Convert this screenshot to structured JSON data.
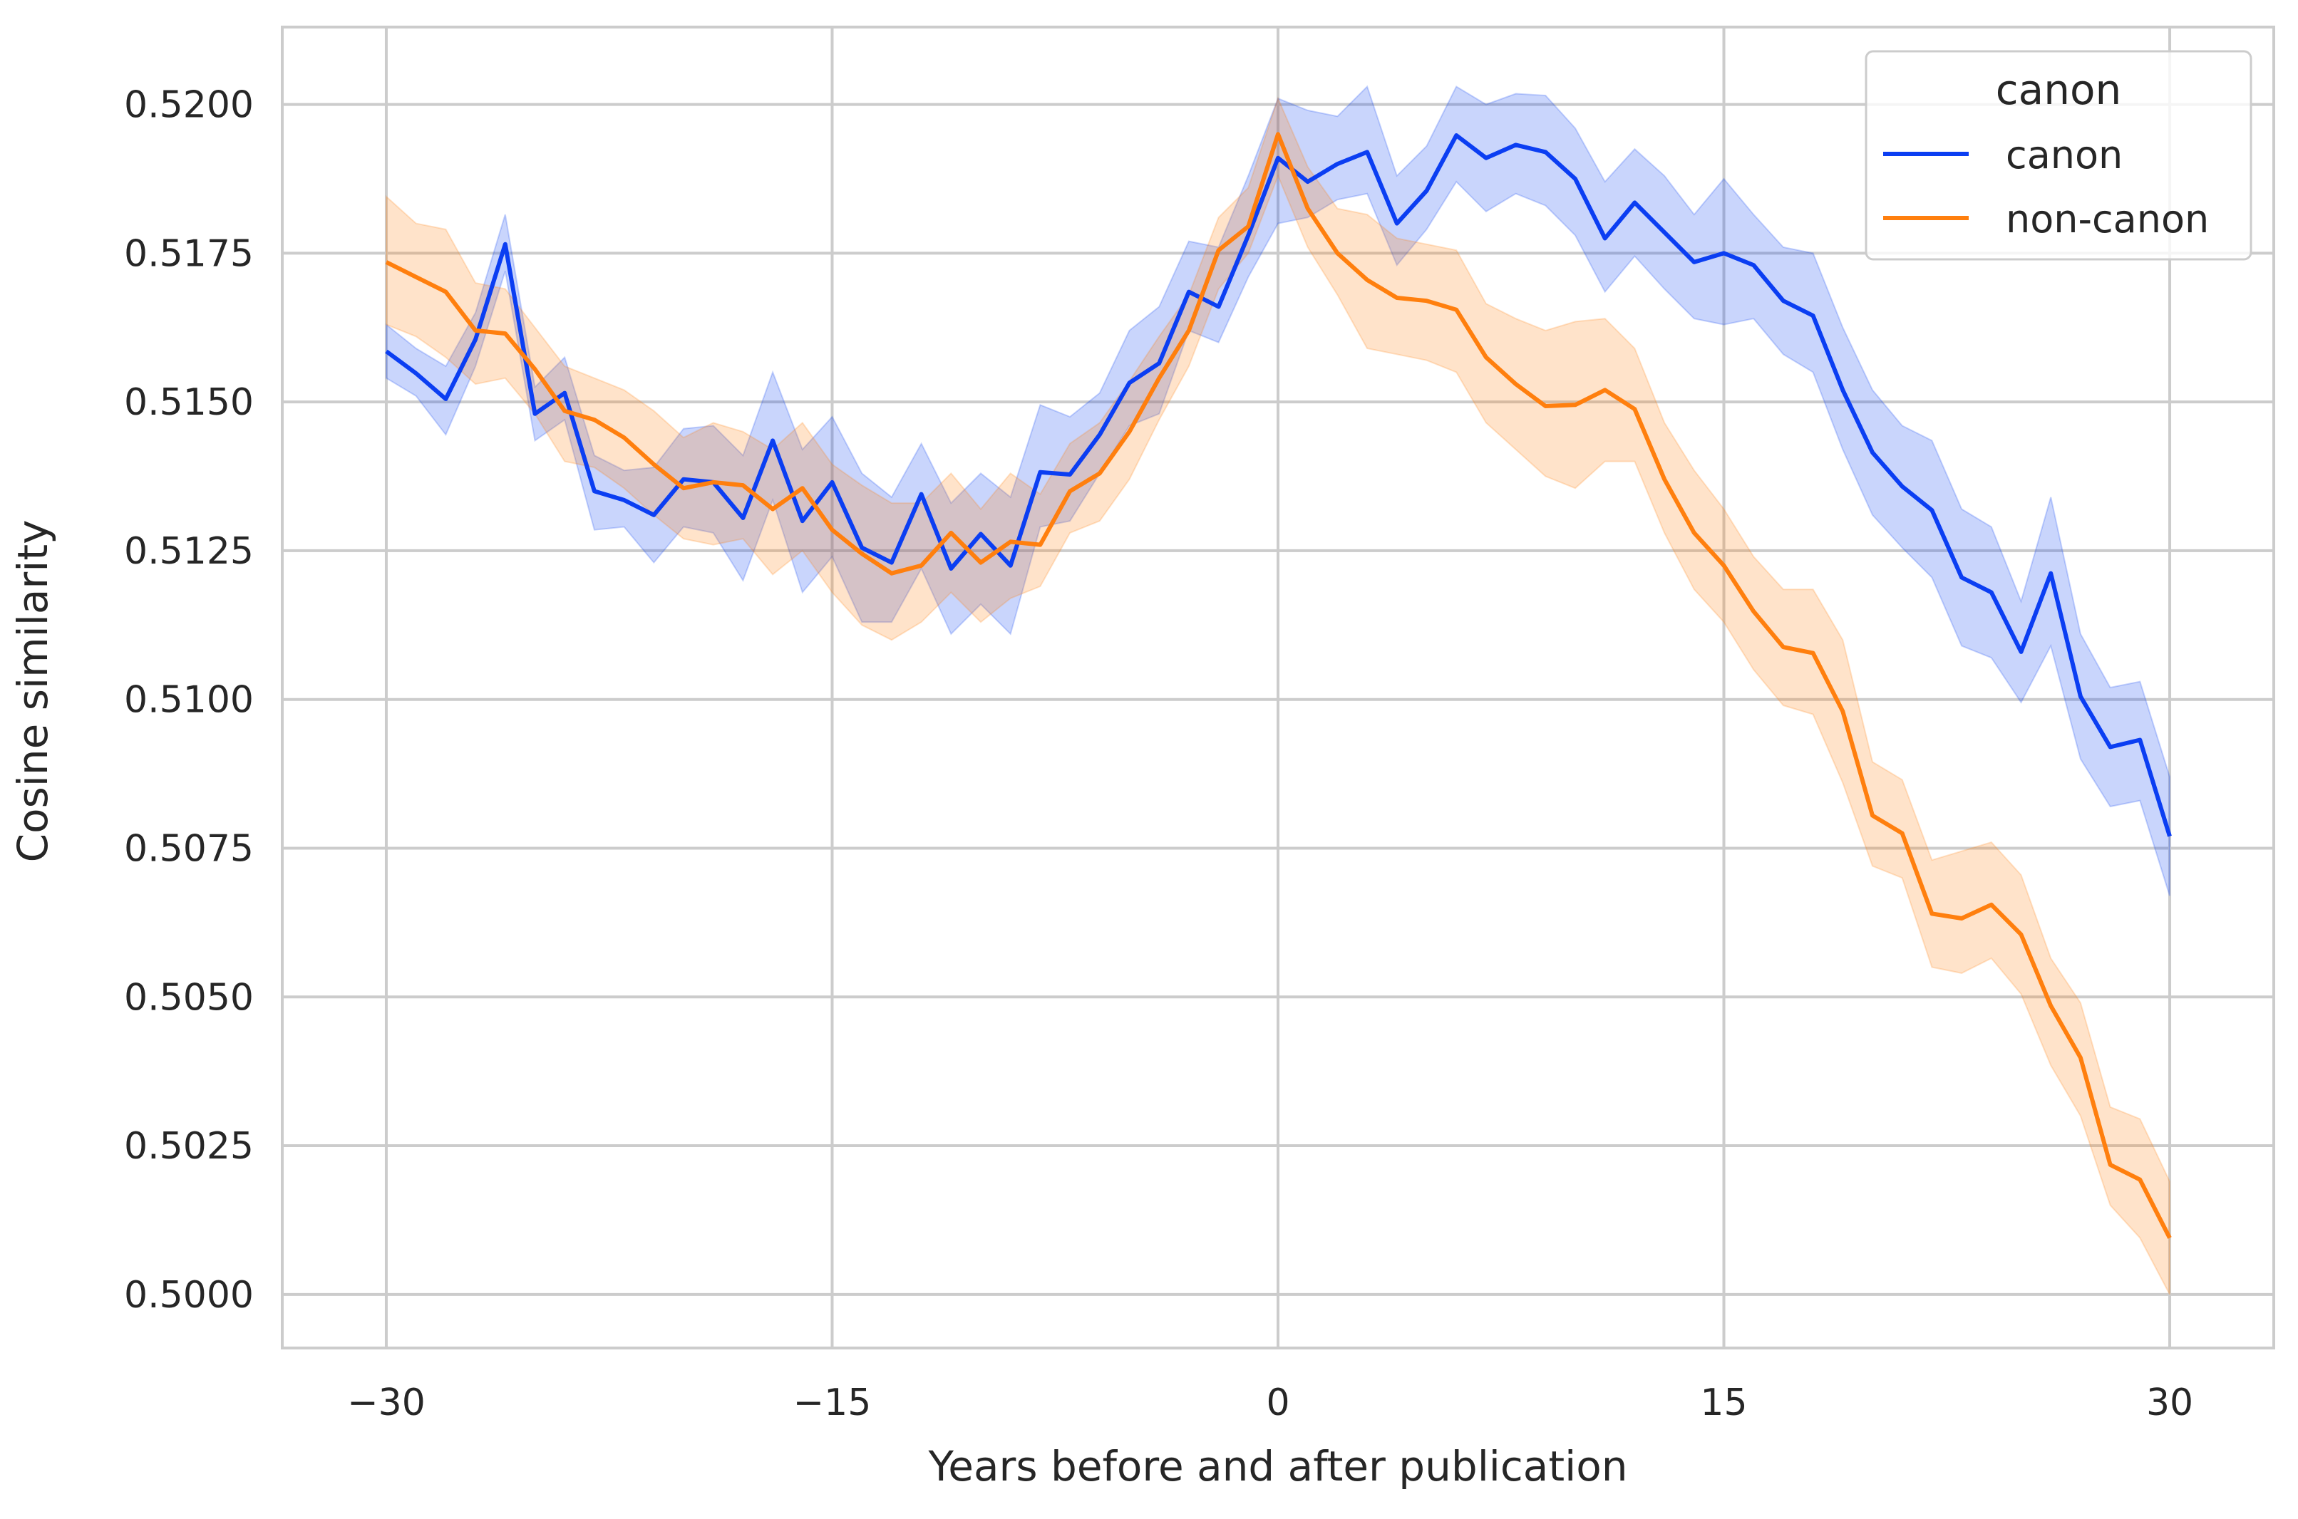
{
  "chart_data": {
    "type": "line",
    "title": "",
    "xlabel": "Years before and after publication",
    "ylabel": "Cosine similarity",
    "xlim": [
      -33.5,
      33.5
    ],
    "ylim": [
      0.4991,
      0.5213
    ],
    "xticks": [
      -30,
      -15,
      0,
      15,
      30
    ],
    "xtick_labels": [
      "−30",
      "−15",
      "0",
      "15",
      "30"
    ],
    "yticks": [
      0.5,
      0.5025,
      0.505,
      0.5075,
      0.51,
      0.5125,
      0.515,
      0.5175,
      0.52
    ],
    "ytick_labels": [
      "0.5000",
      "0.5025",
      "0.5050",
      "0.5075",
      "0.5100",
      "0.5125",
      "0.5150",
      "0.5175",
      "0.5200"
    ],
    "grid": true,
    "legend": {
      "title": "canon",
      "placement": "top-right"
    },
    "x": [
      -30,
      -29,
      -28,
      -27,
      -26,
      -25,
      -24,
      -23,
      -22,
      -21,
      -20,
      -19,
      -18,
      -17,
      -16,
      -15,
      -14,
      -13,
      -12,
      -11,
      -10,
      -9,
      -8,
      -7,
      -6,
      -5,
      -4,
      -3,
      -2,
      -1,
      0,
      1,
      2,
      3,
      4,
      5,
      6,
      7,
      8,
      9,
      10,
      11,
      12,
      13,
      14,
      15,
      16,
      17,
      18,
      19,
      20,
      21,
      22,
      23,
      24,
      25,
      26,
      27,
      28,
      29,
      30
    ],
    "series": [
      {
        "name": "canon",
        "color": "#0b3ef2",
        "values": [
          0.51585,
          0.51548,
          0.51505,
          0.51605,
          0.51765,
          0.5148,
          0.51515,
          0.5135,
          0.51335,
          0.5131,
          0.5137,
          0.51365,
          0.51305,
          0.51435,
          0.513,
          0.51365,
          0.51255,
          0.5123,
          0.51345,
          0.5122,
          0.51278,
          0.51225,
          0.51382,
          0.51378,
          0.51445,
          0.51532,
          0.51565,
          0.51685,
          0.5166,
          0.5178,
          0.5191,
          0.5187,
          0.519,
          0.5192,
          0.518,
          0.51855,
          0.51948,
          0.5191,
          0.51932,
          0.5192,
          0.51875,
          0.51775,
          0.51835,
          0.51785,
          0.51735,
          0.5175,
          0.5173,
          0.5167,
          0.51645,
          0.5152,
          0.51415,
          0.51358,
          0.51318,
          0.51205,
          0.5118,
          0.5108,
          0.51212,
          0.51005,
          0.5092,
          0.50932,
          0.5077
        ],
        "ci_low": [
          0.5154,
          0.5151,
          0.51445,
          0.5156,
          0.5172,
          0.51435,
          0.5147,
          0.51285,
          0.5129,
          0.5123,
          0.5129,
          0.5128,
          0.512,
          0.51335,
          0.5118,
          0.5124,
          0.5113,
          0.5113,
          0.5122,
          0.5111,
          0.5116,
          0.5111,
          0.5129,
          0.513,
          0.5138,
          0.5146,
          0.5148,
          0.5162,
          0.516,
          0.5171,
          0.518,
          0.5181,
          0.5184,
          0.5185,
          0.5173,
          0.5179,
          0.5187,
          0.5182,
          0.5185,
          0.5183,
          0.5178,
          0.51685,
          0.51745,
          0.5169,
          0.5164,
          0.5163,
          0.5164,
          0.5158,
          0.5155,
          0.5142,
          0.5131,
          0.51255,
          0.51205,
          0.5109,
          0.5107,
          0.50995,
          0.5109,
          0.509,
          0.5082,
          0.5083,
          0.5067
        ],
        "ci_high": [
          0.5163,
          0.5159,
          0.5156,
          0.5165,
          0.51815,
          0.51525,
          0.51575,
          0.5141,
          0.51385,
          0.5139,
          0.51455,
          0.5146,
          0.5141,
          0.5155,
          0.5142,
          0.51475,
          0.5138,
          0.5134,
          0.5143,
          0.5133,
          0.5138,
          0.5134,
          0.51495,
          0.51475,
          0.51515,
          0.5162,
          0.5166,
          0.5177,
          0.5176,
          0.5188,
          0.5201,
          0.5199,
          0.5198,
          0.5203,
          0.5188,
          0.5193,
          0.5203,
          0.52,
          0.52018,
          0.52015,
          0.5196,
          0.5187,
          0.51925,
          0.5188,
          0.51815,
          0.51875,
          0.51815,
          0.5176,
          0.5175,
          0.51625,
          0.5152,
          0.5146,
          0.51435,
          0.5132,
          0.5129,
          0.51165,
          0.5134,
          0.5111,
          0.5102,
          0.5103,
          0.5087
        ]
      },
      {
        "name": "non-canon",
        "color": "#ff7f0e",
        "values": [
          0.51735,
          0.5171,
          0.51685,
          0.5162,
          0.51615,
          0.51555,
          0.51485,
          0.5147,
          0.5144,
          0.51395,
          0.51355,
          0.51365,
          0.5136,
          0.5132,
          0.51355,
          0.51285,
          0.51245,
          0.51212,
          0.51225,
          0.5128,
          0.5123,
          0.51265,
          0.5126,
          0.5135,
          0.5138,
          0.5145,
          0.5154,
          0.5162,
          0.51755,
          0.51795,
          0.5195,
          0.51825,
          0.5175,
          0.51705,
          0.51675,
          0.5167,
          0.51655,
          0.51575,
          0.5153,
          0.51493,
          0.51495,
          0.5152,
          0.51488,
          0.5137,
          0.5128,
          0.51225,
          0.51148,
          0.51088,
          0.51078,
          0.5098,
          0.50805,
          0.50775,
          0.5064,
          0.50632,
          0.50655,
          0.50605,
          0.50485,
          0.50398,
          0.50218,
          0.50193,
          0.50095
        ],
        "ci_low": [
          0.5163,
          0.5161,
          0.51575,
          0.5153,
          0.5154,
          0.5148,
          0.514,
          0.5139,
          0.51355,
          0.5131,
          0.5127,
          0.5126,
          0.5127,
          0.5121,
          0.5125,
          0.5118,
          0.51125,
          0.511,
          0.5113,
          0.5118,
          0.5113,
          0.5117,
          0.5119,
          0.5128,
          0.513,
          0.5137,
          0.5147,
          0.5156,
          0.5169,
          0.5175,
          0.5188,
          0.5176,
          0.5168,
          0.5159,
          0.5158,
          0.5157,
          0.5155,
          0.51465,
          0.5142,
          0.51375,
          0.51355,
          0.514,
          0.514,
          0.5128,
          0.51185,
          0.5113,
          0.5105,
          0.5099,
          0.50975,
          0.5086,
          0.5072,
          0.507,
          0.5055,
          0.5054,
          0.50565,
          0.50505,
          0.50385,
          0.503,
          0.5015,
          0.50095,
          0.5
        ],
        "ci_high": [
          0.51845,
          0.518,
          0.5179,
          0.517,
          0.5169,
          0.51625,
          0.5156,
          0.5154,
          0.5152,
          0.51485,
          0.5144,
          0.51465,
          0.5145,
          0.5142,
          0.51465,
          0.51395,
          0.5136,
          0.5133,
          0.5133,
          0.5138,
          0.5132,
          0.5138,
          0.51345,
          0.5143,
          0.51465,
          0.51535,
          0.5161,
          0.5168,
          0.5181,
          0.5186,
          0.5201,
          0.51895,
          0.51825,
          0.51815,
          0.51775,
          0.51765,
          0.51755,
          0.51665,
          0.5164,
          0.5162,
          0.51635,
          0.5164,
          0.5159,
          0.51465,
          0.51385,
          0.5132,
          0.5124,
          0.51185,
          0.51185,
          0.511,
          0.50895,
          0.50865,
          0.5073,
          0.50745,
          0.5076,
          0.50705,
          0.50565,
          0.5049,
          0.50315,
          0.50295,
          0.5019
        ]
      }
    ]
  }
}
